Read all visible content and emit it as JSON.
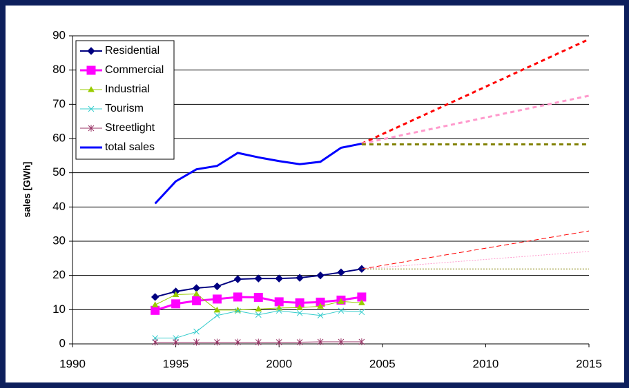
{
  "chart_data": {
    "type": "line",
    "y_label": "sales [GWh]",
    "xlim": [
      1990,
      2015
    ],
    "xticks": [
      1990,
      1995,
      2000,
      2005,
      2010,
      2015
    ],
    "ylim": [
      0,
      90
    ],
    "yticks": [
      0,
      10,
      20,
      30,
      40,
      50,
      60,
      70,
      80,
      90
    ],
    "grid": true,
    "legend": "top-left",
    "series": [
      {
        "name": "Residential",
        "color": "#000080",
        "marker": "diamond",
        "width": 2,
        "x": [
          1994,
          1995,
          1996,
          1997,
          1998,
          1999,
          2000,
          2001,
          2002,
          2003,
          2004
        ],
        "values": [
          13.7,
          15.3,
          16.3,
          16.8,
          18.9,
          19.1,
          19.1,
          19.3,
          20.0,
          20.9,
          21.9
        ]
      },
      {
        "name": "Commercial",
        "color": "#ff00ff",
        "marker": "square",
        "width": 3,
        "x": [
          1994,
          1995,
          1996,
          1997,
          1998,
          1999,
          2000,
          2001,
          2002,
          2003,
          2004
        ],
        "values": [
          9.8,
          11.7,
          12.6,
          13.1,
          13.7,
          13.6,
          12.3,
          12.0,
          12.2,
          12.8,
          13.7
        ]
      },
      {
        "name": "Industrial",
        "color": "#99cc00",
        "marker": "triangle",
        "width": 1,
        "x": [
          1994,
          1995,
          1996,
          1997,
          1998,
          1999,
          2000,
          2001,
          2002,
          2003,
          2004
        ],
        "values": [
          11.4,
          14.4,
          14.6,
          9.9,
          9.9,
          10.2,
          10.5,
          10.6,
          11.0,
          12.4,
          12.0
        ]
      },
      {
        "name": "Tourism",
        "color": "#33cccc",
        "marker": "x",
        "width": 1,
        "x": [
          1994,
          1995,
          1996,
          1997,
          1998,
          1999,
          2000,
          2001,
          2002,
          2003,
          2004
        ],
        "values": [
          1.7,
          1.7,
          3.6,
          8.3,
          9.6,
          8.5,
          9.7,
          9.0,
          8.3,
          9.7,
          9.3
        ]
      },
      {
        "name": "Streetlight",
        "color": "#993366",
        "marker": "star",
        "width": 1,
        "x": [
          1994,
          1995,
          1996,
          1997,
          1998,
          1999,
          2000,
          2001,
          2002,
          2003,
          2004
        ],
        "values": [
          0.5,
          0.5,
          0.5,
          0.5,
          0.5,
          0.5,
          0.5,
          0.5,
          0.6,
          0.6,
          0.6
        ]
      },
      {
        "name": "total sales",
        "color": "#0000ff",
        "marker": "none",
        "width": 3,
        "x": [
          1994,
          1995,
          1996,
          1997,
          1998,
          1999,
          2000,
          2001,
          2002,
          2003,
          2004
        ],
        "values": [
          41.0,
          47.5,
          51.0,
          52.0,
          55.8,
          54.5,
          53.4,
          52.5,
          53.2,
          57.3,
          58.5
        ]
      },
      {
        "color": "#ff0000",
        "marker": "none",
        "width": 3,
        "dash": "6,5",
        "x": [
          2004,
          2015
        ],
        "values": [
          58.5,
          89.0
        ]
      },
      {
        "color": "#ff99cc",
        "marker": "none",
        "width": 3,
        "dash": "6,5",
        "x": [
          2004,
          2015
        ],
        "values": [
          58.5,
          72.5
        ]
      },
      {
        "color": "#808000",
        "marker": "none",
        "width": 3,
        "dash": "6,5",
        "x": [
          2004,
          2015
        ],
        "values": [
          58.3,
          58.3
        ]
      },
      {
        "color": "#ff0000",
        "marker": "none",
        "width": 1,
        "dash": "7,4",
        "x": [
          2004,
          2015
        ],
        "values": [
          21.9,
          33.0
        ]
      },
      {
        "color": "#ff99cc",
        "marker": "none",
        "width": 1,
        "dash": "2,2",
        "x": [
          2004,
          2015
        ],
        "values": [
          21.9,
          27.0
        ]
      },
      {
        "color": "#808000",
        "marker": "none",
        "width": 1,
        "dash": "2,2",
        "x": [
          2004,
          2015
        ],
        "values": [
          21.9,
          21.9
        ]
      }
    ]
  }
}
